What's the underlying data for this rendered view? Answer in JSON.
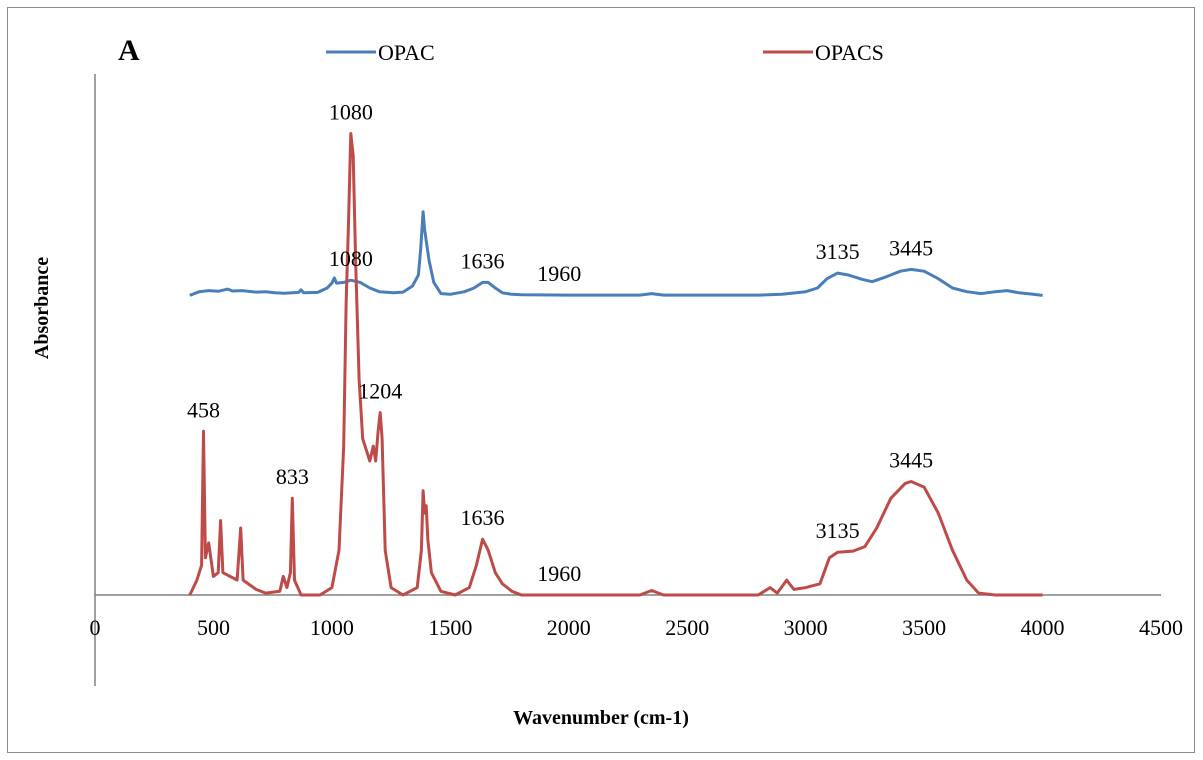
{
  "panel_label": "A",
  "colors": {
    "opac": "#4a7ebb",
    "opacs": "#be4b48",
    "axis": "#808080"
  },
  "chart_data": {
    "type": "line",
    "title": "",
    "xlabel": "Wavenumber (cm-1)",
    "ylabel": "Absorbance",
    "xlim": [
      0,
      4500
    ],
    "ylim": [
      0,
      1.4
    ],
    "x_ticks": [
      0,
      500,
      1000,
      1500,
      2000,
      2500,
      3000,
      3500,
      4000,
      4500
    ],
    "x_tick_labels": [
      "0",
      "500",
      "1000",
      "1500",
      "2000",
      "2500",
      "3000",
      "3500",
      "4000",
      "4500"
    ],
    "y_ticks_shown": false,
    "grid": false,
    "legend": {
      "placement": "top",
      "entries": [
        "OPAC",
        "OPACS"
      ]
    },
    "series": [
      {
        "name": "OPAC",
        "points": [
          [
            400,
            0.805
          ],
          [
            440,
            0.815
          ],
          [
            480,
            0.818
          ],
          [
            520,
            0.816
          ],
          [
            560,
            0.822
          ],
          [
            580,
            0.817
          ],
          [
            620,
            0.818
          ],
          [
            680,
            0.814
          ],
          [
            720,
            0.815
          ],
          [
            760,
            0.812
          ],
          [
            800,
            0.811
          ],
          [
            860,
            0.813
          ],
          [
            870,
            0.82
          ],
          [
            880,
            0.812
          ],
          [
            940,
            0.813
          ],
          [
            980,
            0.825
          ],
          [
            1000,
            0.838
          ],
          [
            1010,
            0.852
          ],
          [
            1020,
            0.838
          ],
          [
            1050,
            0.84
          ],
          [
            1080,
            0.846
          ],
          [
            1120,
            0.84
          ],
          [
            1160,
            0.825
          ],
          [
            1200,
            0.815
          ],
          [
            1260,
            0.812
          ],
          [
            1300,
            0.814
          ],
          [
            1340,
            0.83
          ],
          [
            1365,
            0.86
          ],
          [
            1375,
            0.93
          ],
          [
            1385,
            1.03
          ],
          [
            1392,
            0.98
          ],
          [
            1400,
            0.945
          ],
          [
            1410,
            0.9
          ],
          [
            1430,
            0.84
          ],
          [
            1460,
            0.81
          ],
          [
            1500,
            0.808
          ],
          [
            1560,
            0.815
          ],
          [
            1600,
            0.825
          ],
          [
            1636,
            0.84
          ],
          [
            1660,
            0.84
          ],
          [
            1690,
            0.825
          ],
          [
            1720,
            0.812
          ],
          [
            1760,
            0.808
          ],
          [
            1800,
            0.807
          ],
          [
            2000,
            0.806
          ],
          [
            2300,
            0.806
          ],
          [
            2350,
            0.81
          ],
          [
            2400,
            0.806
          ],
          [
            2800,
            0.806
          ],
          [
            2900,
            0.808
          ],
          [
            3000,
            0.815
          ],
          [
            3050,
            0.825
          ],
          [
            3090,
            0.85
          ],
          [
            3135,
            0.865
          ],
          [
            3180,
            0.86
          ],
          [
            3240,
            0.848
          ],
          [
            3280,
            0.842
          ],
          [
            3340,
            0.855
          ],
          [
            3400,
            0.87
          ],
          [
            3445,
            0.875
          ],
          [
            3500,
            0.87
          ],
          [
            3560,
            0.85
          ],
          [
            3620,
            0.825
          ],
          [
            3680,
            0.815
          ],
          [
            3740,
            0.81
          ],
          [
            3800,
            0.815
          ],
          [
            3850,
            0.818
          ],
          [
            3900,
            0.812
          ],
          [
            3960,
            0.808
          ],
          [
            4000,
            0.805
          ]
        ]
      },
      {
        "name": "OPACS",
        "points": [
          [
            400,
            0.0
          ],
          [
            430,
            0.04
          ],
          [
            450,
            0.08
          ],
          [
            458,
            0.44
          ],
          [
            466,
            0.1
          ],
          [
            480,
            0.14
          ],
          [
            500,
            0.05
          ],
          [
            520,
            0.06
          ],
          [
            530,
            0.2
          ],
          [
            540,
            0.06
          ],
          [
            600,
            0.04
          ],
          [
            615,
            0.18
          ],
          [
            625,
            0.04
          ],
          [
            680,
            0.015
          ],
          [
            720,
            0.005
          ],
          [
            780,
            0.01
          ],
          [
            795,
            0.05
          ],
          [
            810,
            0.02
          ],
          [
            825,
            0.06
          ],
          [
            833,
            0.26
          ],
          [
            842,
            0.04
          ],
          [
            870,
            0.0
          ],
          [
            950,
            0.0
          ],
          [
            1000,
            0.02
          ],
          [
            1030,
            0.12
          ],
          [
            1050,
            0.4
          ],
          [
            1060,
            0.78
          ],
          [
            1070,
            1.0
          ],
          [
            1080,
            1.24
          ],
          [
            1090,
            1.18
          ],
          [
            1100,
            0.9
          ],
          [
            1115,
            0.58
          ],
          [
            1130,
            0.42
          ],
          [
            1160,
            0.36
          ],
          [
            1175,
            0.4
          ],
          [
            1185,
            0.36
          ],
          [
            1195,
            0.44
          ],
          [
            1204,
            0.49
          ],
          [
            1212,
            0.42
          ],
          [
            1225,
            0.12
          ],
          [
            1250,
            0.02
          ],
          [
            1300,
            0.0
          ],
          [
            1360,
            0.02
          ],
          [
            1378,
            0.12
          ],
          [
            1385,
            0.28
          ],
          [
            1392,
            0.22
          ],
          [
            1398,
            0.24
          ],
          [
            1405,
            0.15
          ],
          [
            1420,
            0.06
          ],
          [
            1460,
            0.01
          ],
          [
            1520,
            0.0
          ],
          [
            1580,
            0.02
          ],
          [
            1610,
            0.08
          ],
          [
            1636,
            0.15
          ],
          [
            1660,
            0.12
          ],
          [
            1690,
            0.06
          ],
          [
            1720,
            0.03
          ],
          [
            1760,
            0.01
          ],
          [
            1800,
            0.0
          ],
          [
            2300,
            0.0
          ],
          [
            2350,
            0.012
          ],
          [
            2400,
            0.0
          ],
          [
            2800,
            0.0
          ],
          [
            2850,
            0.02
          ],
          [
            2880,
            0.005
          ],
          [
            2920,
            0.04
          ],
          [
            2950,
            0.015
          ],
          [
            3000,
            0.02
          ],
          [
            3060,
            0.03
          ],
          [
            3100,
            0.1
          ],
          [
            3135,
            0.115
          ],
          [
            3200,
            0.118
          ],
          [
            3250,
            0.13
          ],
          [
            3300,
            0.18
          ],
          [
            3360,
            0.26
          ],
          [
            3420,
            0.3
          ],
          [
            3445,
            0.305
          ],
          [
            3500,
            0.29
          ],
          [
            3560,
            0.22
          ],
          [
            3620,
            0.12
          ],
          [
            3680,
            0.04
          ],
          [
            3730,
            0.005
          ],
          [
            3800,
            0.0
          ],
          [
            4000,
            0.0
          ]
        ]
      }
    ],
    "annotations": [
      {
        "text": "1636",
        "series": "OPAC",
        "x": 1636
      },
      {
        "text": "1080",
        "series": "OPAC",
        "x": 1080
      },
      {
        "text": "1960",
        "series": "OPAC",
        "x": 1960
      },
      {
        "text": "3135",
        "series": "OPAC",
        "x": 3135
      },
      {
        "text": "3445",
        "series": "OPAC",
        "x": 3445
      },
      {
        "text": "1080",
        "series": "OPACS",
        "x": 1080
      },
      {
        "text": "1204",
        "series": "OPACS",
        "x": 1204
      },
      {
        "text": "458",
        "series": "OPACS",
        "x": 458
      },
      {
        "text": "833",
        "series": "OPACS",
        "x": 833
      },
      {
        "text": "1636",
        "series": "OPACS",
        "x": 1636
      },
      {
        "text": "1960",
        "series": "OPACS",
        "x": 1960
      },
      {
        "text": "3135",
        "series": "OPACS",
        "x": 3135
      },
      {
        "text": "3445",
        "series": "OPACS",
        "x": 3445
      }
    ]
  }
}
